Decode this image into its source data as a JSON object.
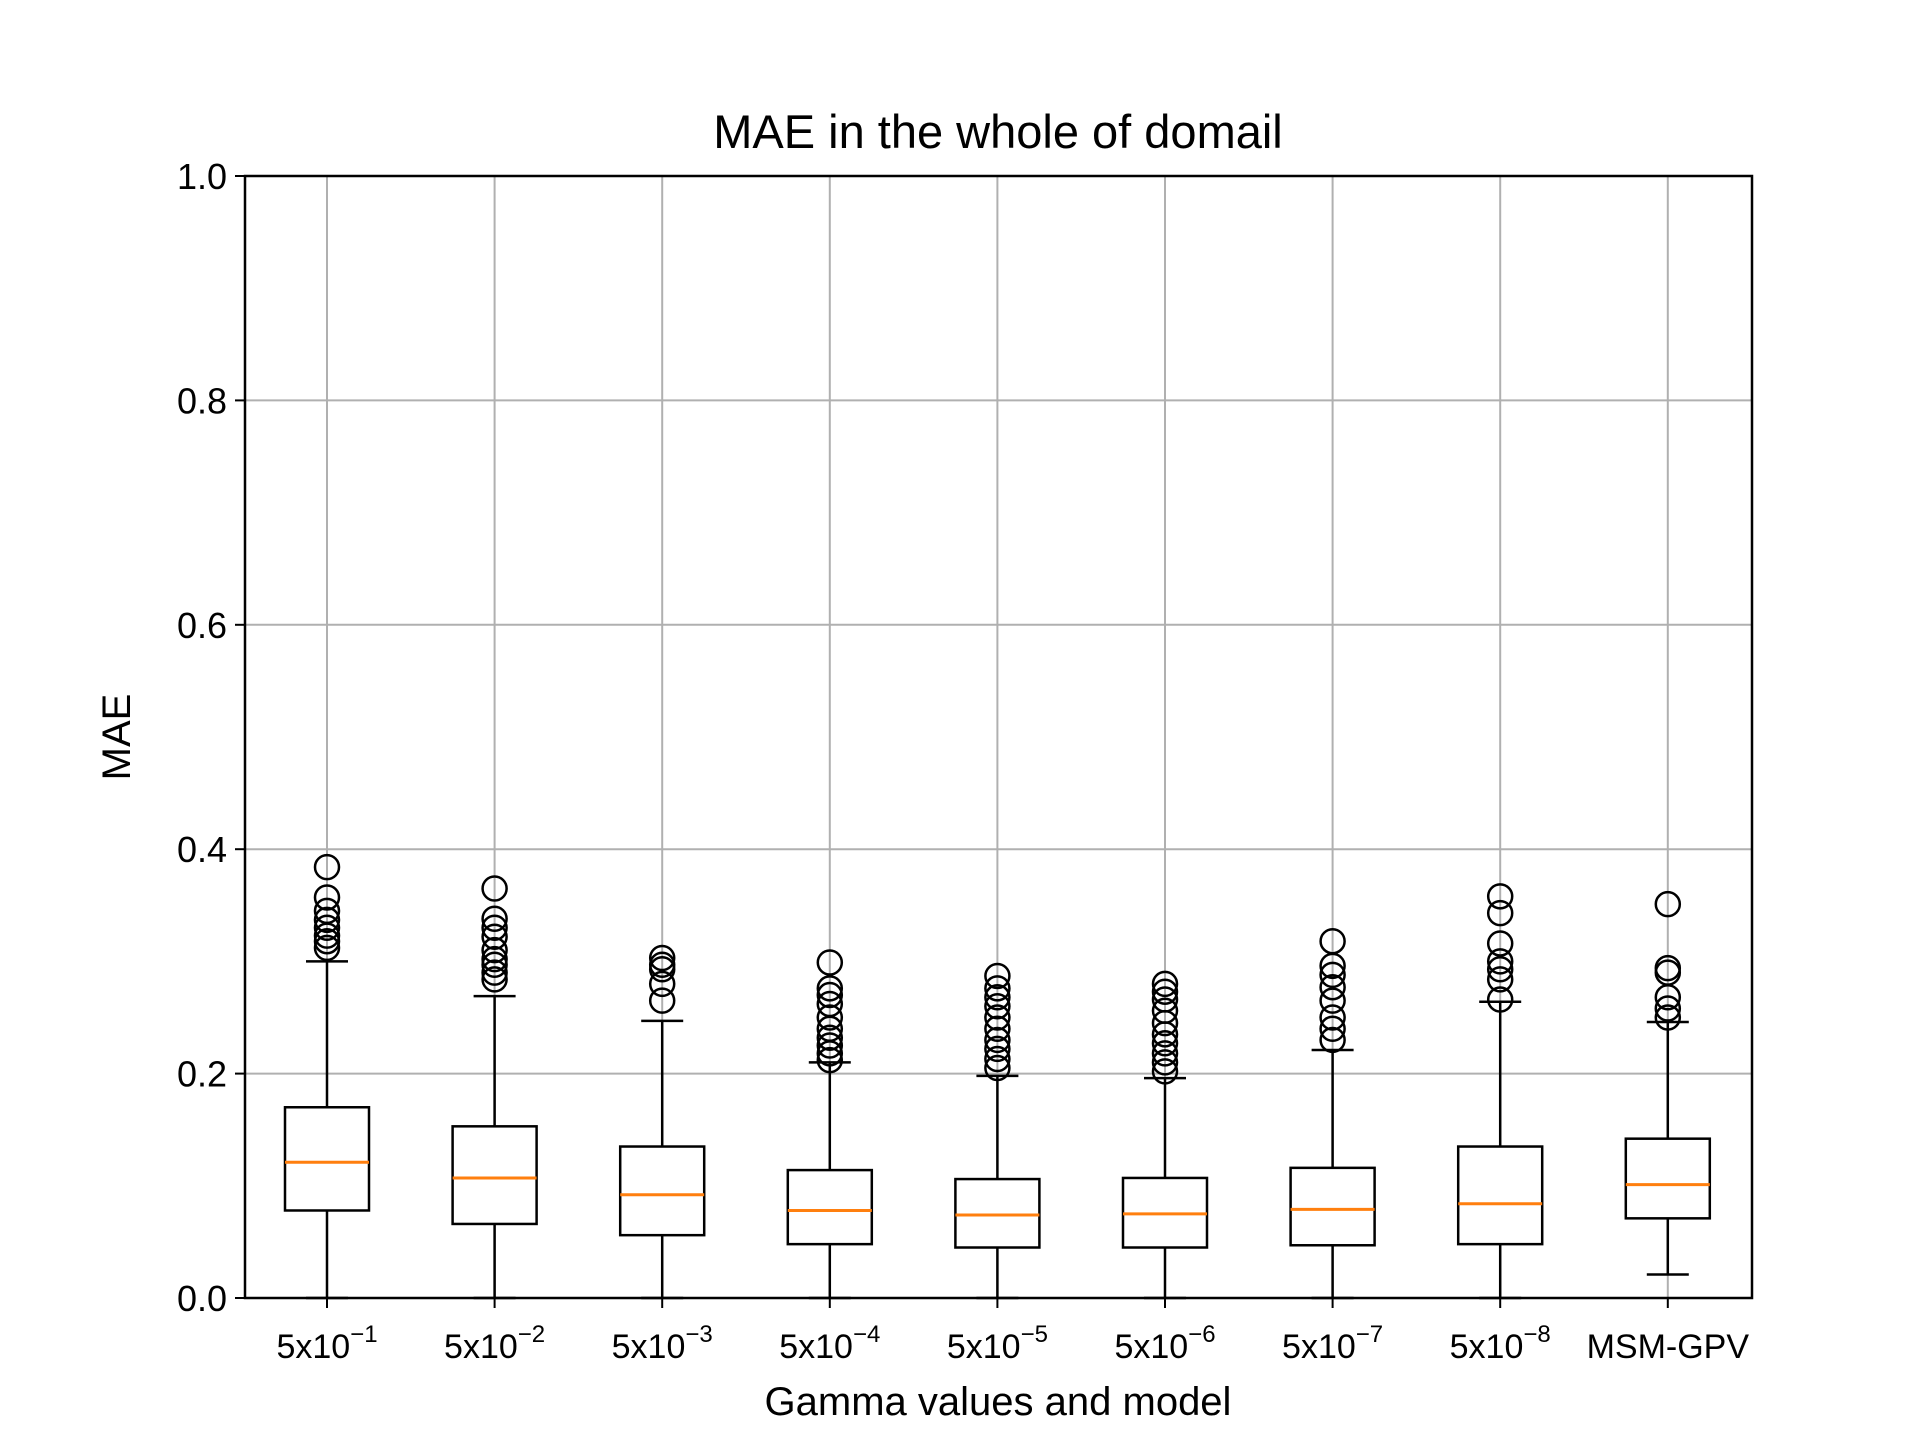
{
  "chart_data": {
    "type": "box",
    "title": "MAE in the whole of domail",
    "xlabel": "Gamma values and model",
    "ylabel": "MAE",
    "ylim": [
      0,
      1.0
    ],
    "yticks": [
      "0.0",
      "0.2",
      "0.4",
      "0.6",
      "0.8",
      "1.0"
    ],
    "grid": true,
    "categories": [
      {
        "base": "5x10",
        "exp": "−1"
      },
      {
        "base": "5x10",
        "exp": "−2"
      },
      {
        "base": "5x10",
        "exp": "−3"
      },
      {
        "base": "5x10",
        "exp": "−4"
      },
      {
        "base": "5x10",
        "exp": "−5"
      },
      {
        "base": "5x10",
        "exp": "−6"
      },
      {
        "base": "5x10",
        "exp": "−7"
      },
      {
        "base": "5x10",
        "exp": "−8"
      },
      {
        "base": "MSM-GPV",
        "exp": ""
      }
    ],
    "boxes": [
      {
        "whisker_low": 0.0,
        "q1": 0.078,
        "median": 0.121,
        "q3": 0.17,
        "whisker_high": 0.3,
        "outliers": [
          0.312,
          0.318,
          0.323,
          0.33,
          0.337,
          0.345,
          0.357,
          0.384
        ]
      },
      {
        "whisker_low": 0.0,
        "q1": 0.066,
        "median": 0.107,
        "q3": 0.153,
        "whisker_high": 0.269,
        "outliers": [
          0.284,
          0.29,
          0.297,
          0.302,
          0.31,
          0.322,
          0.33,
          0.338,
          0.365
        ]
      },
      {
        "whisker_low": 0.0,
        "q1": 0.056,
        "median": 0.092,
        "q3": 0.135,
        "whisker_high": 0.247,
        "outliers": [
          0.265,
          0.28,
          0.293,
          0.297,
          0.303
        ]
      },
      {
        "whisker_low": 0.0,
        "q1": 0.048,
        "median": 0.078,
        "q3": 0.114,
        "whisker_high": 0.21,
        "outliers": [
          0.212,
          0.218,
          0.225,
          0.232,
          0.24,
          0.25,
          0.262,
          0.27,
          0.276,
          0.299
        ]
      },
      {
        "whisker_low": 0.0,
        "q1": 0.045,
        "median": 0.074,
        "q3": 0.106,
        "whisker_high": 0.198,
        "outliers": [
          0.205,
          0.213,
          0.222,
          0.23,
          0.24,
          0.25,
          0.26,
          0.268,
          0.276,
          0.287
        ]
      },
      {
        "whisker_low": 0.0,
        "q1": 0.045,
        "median": 0.075,
        "q3": 0.107,
        "whisker_high": 0.196,
        "outliers": [
          0.202,
          0.21,
          0.218,
          0.227,
          0.235,
          0.245,
          0.256,
          0.266,
          0.273,
          0.28
        ]
      },
      {
        "whisker_low": 0.0,
        "q1": 0.047,
        "median": 0.079,
        "q3": 0.116,
        "whisker_high": 0.221,
        "outliers": [
          0.23,
          0.24,
          0.25,
          0.265,
          0.277,
          0.288,
          0.296,
          0.318
        ]
      },
      {
        "whisker_low": 0.0,
        "q1": 0.048,
        "median": 0.084,
        "q3": 0.135,
        "whisker_high": 0.264,
        "outliers": [
          0.266,
          0.284,
          0.293,
          0.3,
          0.316,
          0.343,
          0.358
        ]
      },
      {
        "whisker_low": 0.021,
        "q1": 0.071,
        "median": 0.101,
        "q3": 0.142,
        "whisker_high": 0.246,
        "outliers": [
          0.25,
          0.258,
          0.268,
          0.29,
          0.294,
          0.351
        ]
      }
    ],
    "colors": {
      "box": "#000000",
      "median": "#ff7f0e",
      "grid": "#b0b0b0",
      "outlier": "#000000"
    }
  }
}
